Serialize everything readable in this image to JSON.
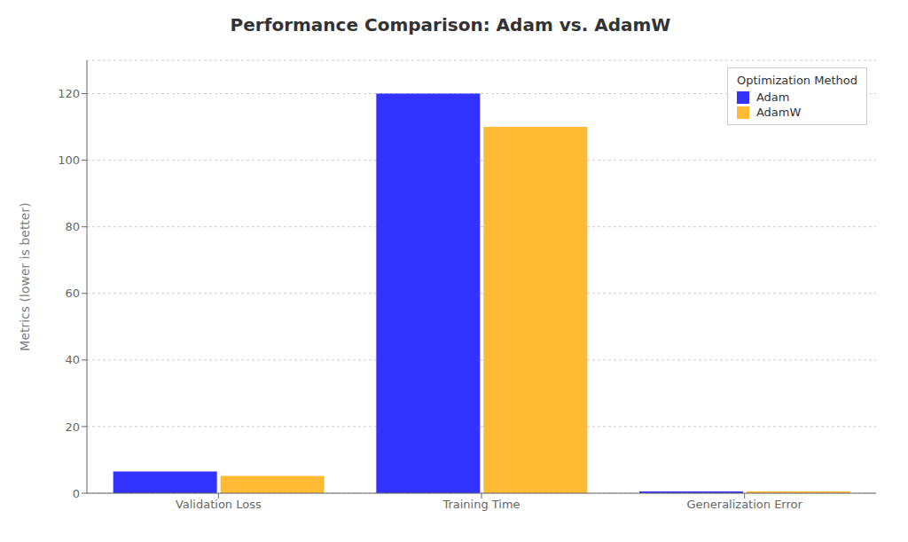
{
  "chart_data": {
    "type": "bar",
    "title": "Performance Comparison: Adam vs. AdamW",
    "ylabel": "Metrics (lower is better)",
    "legend_title": "Optimization Method",
    "categories": [
      "Validation Loss",
      "Training Time",
      "Generalization Error"
    ],
    "series": [
      {
        "name": "Adam",
        "color": "#3333ff",
        "values": [
          6.5,
          120,
          0.5
        ]
      },
      {
        "name": "AdamW",
        "color": "#ffbb33",
        "values": [
          5.2,
          110,
          0.5
        ]
      }
    ],
    "ylim": [
      0,
      130
    ],
    "yticks": [
      0,
      20,
      40,
      60,
      80,
      100,
      120
    ],
    "grid": true,
    "legend": "upper right"
  }
}
